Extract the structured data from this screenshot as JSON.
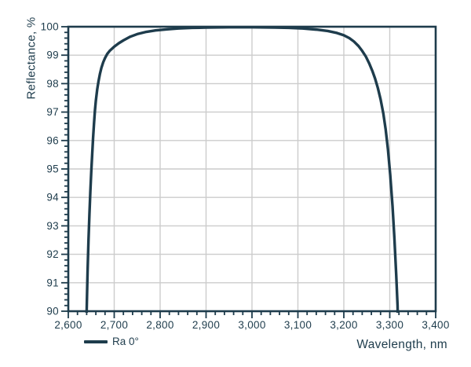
{
  "chart": {
    "ylabel": "Reflectance, %",
    "xlabel": "Wavelength, nm",
    "legend_label": "Ra 0°"
  },
  "colors": {
    "ink": "#1e3c4c",
    "grid": "#cccccc",
    "background": "#ffffff"
  },
  "chart_data": {
    "type": "line",
    "title": "",
    "xlabel": "Wavelength, nm",
    "ylabel": "Reflectance, %",
    "xlim": [
      2600,
      3400
    ],
    "ylim": [
      90,
      100
    ],
    "grid": "major-both",
    "legend_position": "bottom-left",
    "x_major_ticks": [
      2600,
      2700,
      2800,
      2900,
      3000,
      3100,
      3200,
      3300,
      3400
    ],
    "x_tick_labels": [
      "2,600",
      "2,700",
      "2,800",
      "2,900",
      "3,000",
      "3,100",
      "3,200",
      "3,300",
      "3,400"
    ],
    "x_minor_tick_step": 20,
    "y_major_ticks": [
      90,
      91,
      92,
      93,
      94,
      95,
      96,
      97,
      98,
      99,
      100
    ],
    "y_tick_labels": [
      "90",
      "91",
      "92",
      "93",
      "94",
      "95",
      "96",
      "97",
      "98",
      "99",
      "100"
    ],
    "y_minor_tick_step": 0.2,
    "series": [
      {
        "name": "Ra 0°",
        "color": "#1e3c4c",
        "points": [
          [
            2638,
            89.4
          ],
          [
            2640,
            90.0
          ],
          [
            2641,
            90.7
          ],
          [
            2642,
            91.4
          ],
          [
            2644,
            92.5
          ],
          [
            2646,
            93.4
          ],
          [
            2648,
            94.2
          ],
          [
            2650,
            94.9
          ],
          [
            2652,
            95.5
          ],
          [
            2654,
            96.1
          ],
          [
            2656,
            96.6
          ],
          [
            2658,
            97.05
          ],
          [
            2660,
            97.4
          ],
          [
            2663,
            97.8
          ],
          [
            2666,
            98.1
          ],
          [
            2669,
            98.35
          ],
          [
            2672,
            98.55
          ],
          [
            2676,
            98.75
          ],
          [
            2680,
            98.9
          ],
          [
            2685,
            99.05
          ],
          [
            2690,
            99.15
          ],
          [
            2700,
            99.3
          ],
          [
            2710,
            99.42
          ],
          [
            2720,
            99.52
          ],
          [
            2735,
            99.65
          ],
          [
            2750,
            99.74
          ],
          [
            2770,
            99.82
          ],
          [
            2790,
            99.87
          ],
          [
            2815,
            99.91
          ],
          [
            2840,
            99.94
          ],
          [
            2870,
            99.96
          ],
          [
            2900,
            99.97
          ],
          [
            2950,
            99.98
          ],
          [
            3000,
            99.98
          ],
          [
            3050,
            99.97
          ],
          [
            3080,
            99.96
          ],
          [
            3110,
            99.94
          ],
          [
            3140,
            99.9
          ],
          [
            3165,
            99.85
          ],
          [
            3185,
            99.78
          ],
          [
            3200,
            99.7
          ],
          [
            3212,
            99.6
          ],
          [
            3222,
            99.48
          ],
          [
            3232,
            99.32
          ],
          [
            3240,
            99.15
          ],
          [
            3248,
            98.95
          ],
          [
            3255,
            98.72
          ],
          [
            3262,
            98.45
          ],
          [
            3268,
            98.18
          ],
          [
            3274,
            97.85
          ],
          [
            3280,
            97.45
          ],
          [
            3286,
            96.95
          ],
          [
            3291,
            96.4
          ],
          [
            3296,
            95.7
          ],
          [
            3301,
            94.8
          ],
          [
            3306,
            93.7
          ],
          [
            3310,
            92.6
          ],
          [
            3314,
            91.3
          ],
          [
            3317,
            90.2
          ],
          [
            3318,
            89.4
          ]
        ]
      }
    ]
  }
}
